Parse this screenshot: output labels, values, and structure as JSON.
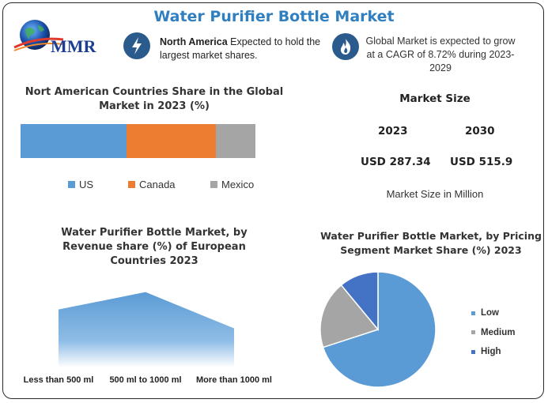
{
  "header": {
    "title": "Water Purifier Bottle Market",
    "logo_text": "MMR"
  },
  "highlights": {
    "na": {
      "icon": "lightning-icon",
      "strong": "North America",
      "rest": " Expected to hold the largest market shares."
    },
    "cagr": {
      "icon": "flame-icon",
      "text": "Global Market is expected to grow at a CAGR of 8.72% during 2023-2029"
    }
  },
  "market_size": {
    "title": "Market Size",
    "years": [
      "2023",
      "2030"
    ],
    "values": [
      "USD 287.34",
      "USD 515.9"
    ],
    "unit_label": "Market Size in Million"
  },
  "colors": {
    "title_blue": "#2f7fc1",
    "badge": "#2b5a8c",
    "us": "#5b9bd5",
    "canada": "#ed7d31",
    "mexico": "#a5a5a5",
    "low": "#5b9bd5",
    "medium": "#a5a5a5",
    "high": "#4472c4"
  },
  "chart_data": [
    {
      "type": "bar",
      "stacked": true,
      "orientation": "horizontal",
      "title": "Nort American Countries Share in the Global Market in 2023 (%)",
      "series": [
        {
          "name": "US",
          "values": [
            45
          ]
        },
        {
          "name": "Canada",
          "values": [
            38
          ]
        },
        {
          "name": "Mexico",
          "values": [
            17
          ]
        }
      ],
      "legend": "bottom"
    },
    {
      "type": "area",
      "title": "Water Purifier Bottle Market, by Revenue share (%) of European Countries 2023",
      "categories": [
        "Less than 500 ml",
        "500 ml to 1000 ml",
        "More than 1000 ml"
      ],
      "values": [
        40,
        52,
        27
      ],
      "ylim": [
        0,
        60
      ]
    },
    {
      "type": "pie",
      "title": "Water Purifier Bottle Market, by Pricing Segment Market Share (%) 2023",
      "categories": [
        "Low",
        "Medium",
        "High"
      ],
      "values": [
        70,
        19,
        11
      ],
      "legend": "right"
    }
  ]
}
